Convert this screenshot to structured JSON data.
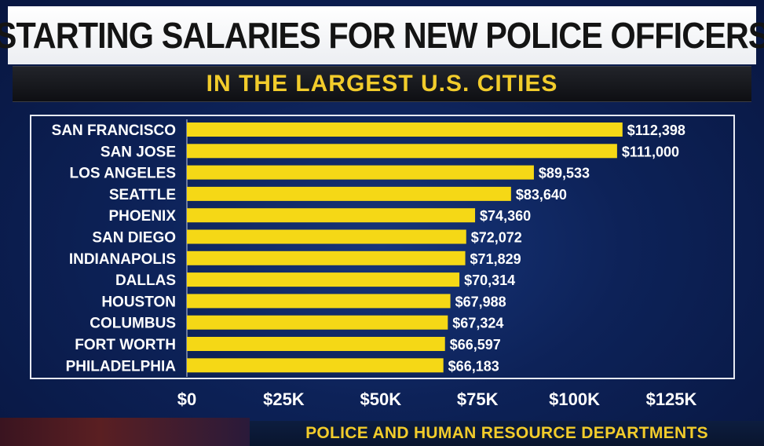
{
  "header": {
    "title": "STARTING SALARIES FOR NEW POLICE OFFICERS",
    "subtitle": "IN THE LARGEST U.S. CITIES"
  },
  "footer": {
    "source": "POLICE AND HUMAN RESOURCE DEPARTMENTS"
  },
  "colors": {
    "bar": "#f5d816",
    "text": "#ffffff",
    "accent": "#f2cc2b"
  },
  "chart_data": {
    "type": "bar",
    "orientation": "horizontal",
    "title": "STARTING SALARIES FOR NEW POLICE OFFICERS",
    "subtitle": "IN THE LARGEST U.S. CITIES",
    "categories": [
      "SAN FRANCISCO",
      "SAN JOSE",
      "LOS ANGELES",
      "SEATTLE",
      "PHOENIX",
      "SAN DIEGO",
      "INDIANAPOLIS",
      "DALLAS",
      "HOUSTON",
      "COLUMBUS",
      "FORT WORTH",
      "PHILADELPHIA"
    ],
    "values": [
      112398,
      111000,
      89533,
      83640,
      74360,
      72072,
      71829,
      70314,
      67988,
      67324,
      66597,
      66183
    ],
    "value_labels": [
      "$112,398",
      "$111,000",
      "$89,533",
      "$83,640",
      "$74,360",
      "$72,072",
      "$71,829",
      "$70,314",
      "$67,988",
      "$67,324",
      "$66,597",
      "$66,183"
    ],
    "xlim": [
      0,
      125000
    ],
    "xticks": [
      0,
      25000,
      50000,
      75000,
      100000,
      125000
    ],
    "xtick_labels": [
      "$0",
      "$25K",
      "$50K",
      "$75K",
      "$100K",
      "$125K"
    ],
    "grid": false,
    "legend": "none"
  }
}
